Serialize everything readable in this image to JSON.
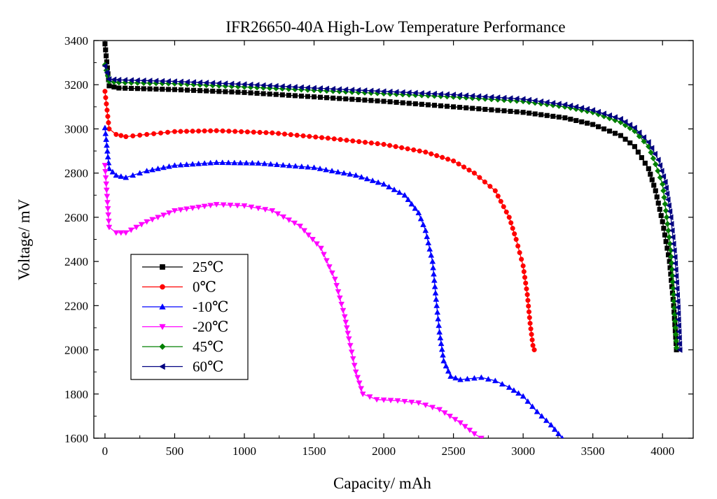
{
  "chart_data": {
    "type": "line",
    "title": "IFR26650-40A High-Low Temperature Performance",
    "xlabel": "Capacity/ mAh",
    "ylabel": "Voltage/ mV",
    "xlim": [
      -80,
      4220
    ],
    "ylim": [
      1600,
      3400
    ],
    "x_ticks": [
      0,
      500,
      1000,
      1500,
      2000,
      2500,
      3000,
      3500,
      4000
    ],
    "y_ticks": [
      1600,
      1800,
      2000,
      2200,
      2400,
      2600,
      2800,
      3000,
      3200,
      3400
    ],
    "grid": false,
    "legend_position": "lower-left",
    "series": [
      {
        "name": "25℃",
        "color": "#000000",
        "marker": "square",
        "points": [
          [
            0,
            3385
          ],
          [
            30,
            3195
          ],
          [
            100,
            3185
          ],
          [
            500,
            3178
          ],
          [
            1000,
            3165
          ],
          [
            1500,
            3145
          ],
          [
            2000,
            3125
          ],
          [
            2500,
            3100
          ],
          [
            3000,
            3075
          ],
          [
            3300,
            3050
          ],
          [
            3500,
            3020
          ],
          [
            3700,
            2970
          ],
          [
            3800,
            2920
          ],
          [
            3900,
            2820
          ],
          [
            3950,
            2720
          ],
          [
            4000,
            2580
          ],
          [
            4050,
            2400
          ],
          [
            4080,
            2200
          ],
          [
            4100,
            2000
          ]
        ]
      },
      {
        "name": "0℃",
        "color": "#ff0000",
        "marker": "circle",
        "points": [
          [
            0,
            3170
          ],
          [
            30,
            3000
          ],
          [
            80,
            2975
          ],
          [
            150,
            2965
          ],
          [
            300,
            2975
          ],
          [
            500,
            2988
          ],
          [
            800,
            2992
          ],
          [
            1200,
            2982
          ],
          [
            1600,
            2958
          ],
          [
            2000,
            2930
          ],
          [
            2300,
            2895
          ],
          [
            2500,
            2855
          ],
          [
            2650,
            2800
          ],
          [
            2800,
            2720
          ],
          [
            2900,
            2600
          ],
          [
            2950,
            2500
          ],
          [
            3000,
            2380
          ],
          [
            3030,
            2250
          ],
          [
            3050,
            2120
          ],
          [
            3070,
            2020
          ],
          [
            3080,
            2000
          ]
        ]
      },
      {
        "name": "-10℃",
        "color": "#0000ff",
        "marker": "triangle-up",
        "points": [
          [
            0,
            3005
          ],
          [
            30,
            2820
          ],
          [
            80,
            2790
          ],
          [
            150,
            2780
          ],
          [
            300,
            2810
          ],
          [
            500,
            2835
          ],
          [
            800,
            2848
          ],
          [
            1100,
            2845
          ],
          [
            1500,
            2825
          ],
          [
            1800,
            2790
          ],
          [
            2000,
            2750
          ],
          [
            2150,
            2700
          ],
          [
            2250,
            2620
          ],
          [
            2300,
            2540
          ],
          [
            2350,
            2400
          ],
          [
            2380,
            2200
          ],
          [
            2400,
            2080
          ],
          [
            2430,
            1950
          ],
          [
            2480,
            1880
          ],
          [
            2550,
            1865
          ],
          [
            2700,
            1875
          ],
          [
            2800,
            1860
          ],
          [
            2900,
            1830
          ],
          [
            3000,
            1790
          ],
          [
            3100,
            1720
          ],
          [
            3200,
            1660
          ],
          [
            3280,
            1600
          ]
        ]
      },
      {
        "name": "-20℃",
        "color": "#ff00ff",
        "marker": "triangle-down",
        "points": [
          [
            0,
            2835
          ],
          [
            30,
            2555
          ],
          [
            80,
            2530
          ],
          [
            150,
            2530
          ],
          [
            300,
            2580
          ],
          [
            500,
            2630
          ],
          [
            800,
            2658
          ],
          [
            1000,
            2652
          ],
          [
            1200,
            2630
          ],
          [
            1400,
            2560
          ],
          [
            1550,
            2460
          ],
          [
            1650,
            2320
          ],
          [
            1720,
            2150
          ],
          [
            1750,
            2050
          ],
          [
            1800,
            1900
          ],
          [
            1850,
            1800
          ],
          [
            1950,
            1775
          ],
          [
            2100,
            1770
          ],
          [
            2250,
            1760
          ],
          [
            2400,
            1730
          ],
          [
            2550,
            1670
          ],
          [
            2650,
            1620
          ],
          [
            2700,
            1600
          ]
        ]
      },
      {
        "name": "45℃",
        "color": "#008000",
        "marker": "diamond",
        "points": [
          [
            0,
            3290
          ],
          [
            30,
            3215
          ],
          [
            100,
            3210
          ],
          [
            500,
            3205
          ],
          [
            1000,
            3190
          ],
          [
            1500,
            3175
          ],
          [
            2000,
            3160
          ],
          [
            2500,
            3145
          ],
          [
            3000,
            3125
          ],
          [
            3300,
            3100
          ],
          [
            3500,
            3075
          ],
          [
            3700,
            3030
          ],
          [
            3800,
            2990
          ],
          [
            3900,
            2920
          ],
          [
            3950,
            2840
          ],
          [
            4000,
            2750
          ],
          [
            4030,
            2600
          ],
          [
            4060,
            2450
          ],
          [
            4080,
            2250
          ],
          [
            4100,
            2010
          ]
        ]
      },
      {
        "name": "60℃",
        "color": "#000080",
        "marker": "triangle-left",
        "points": [
          [
            0,
            3285
          ],
          [
            30,
            3225
          ],
          [
            100,
            3222
          ],
          [
            500,
            3215
          ],
          [
            1000,
            3202
          ],
          [
            1500,
            3185
          ],
          [
            2000,
            3170
          ],
          [
            2500,
            3155
          ],
          [
            3000,
            3135
          ],
          [
            3300,
            3110
          ],
          [
            3500,
            3085
          ],
          [
            3700,
            3045
          ],
          [
            3800,
            3005
          ],
          [
            3900,
            2940
          ],
          [
            3970,
            2860
          ],
          [
            4020,
            2760
          ],
          [
            4060,
            2600
          ],
          [
            4090,
            2420
          ],
          [
            4110,
            2220
          ],
          [
            4125,
            2000
          ]
        ]
      }
    ]
  }
}
